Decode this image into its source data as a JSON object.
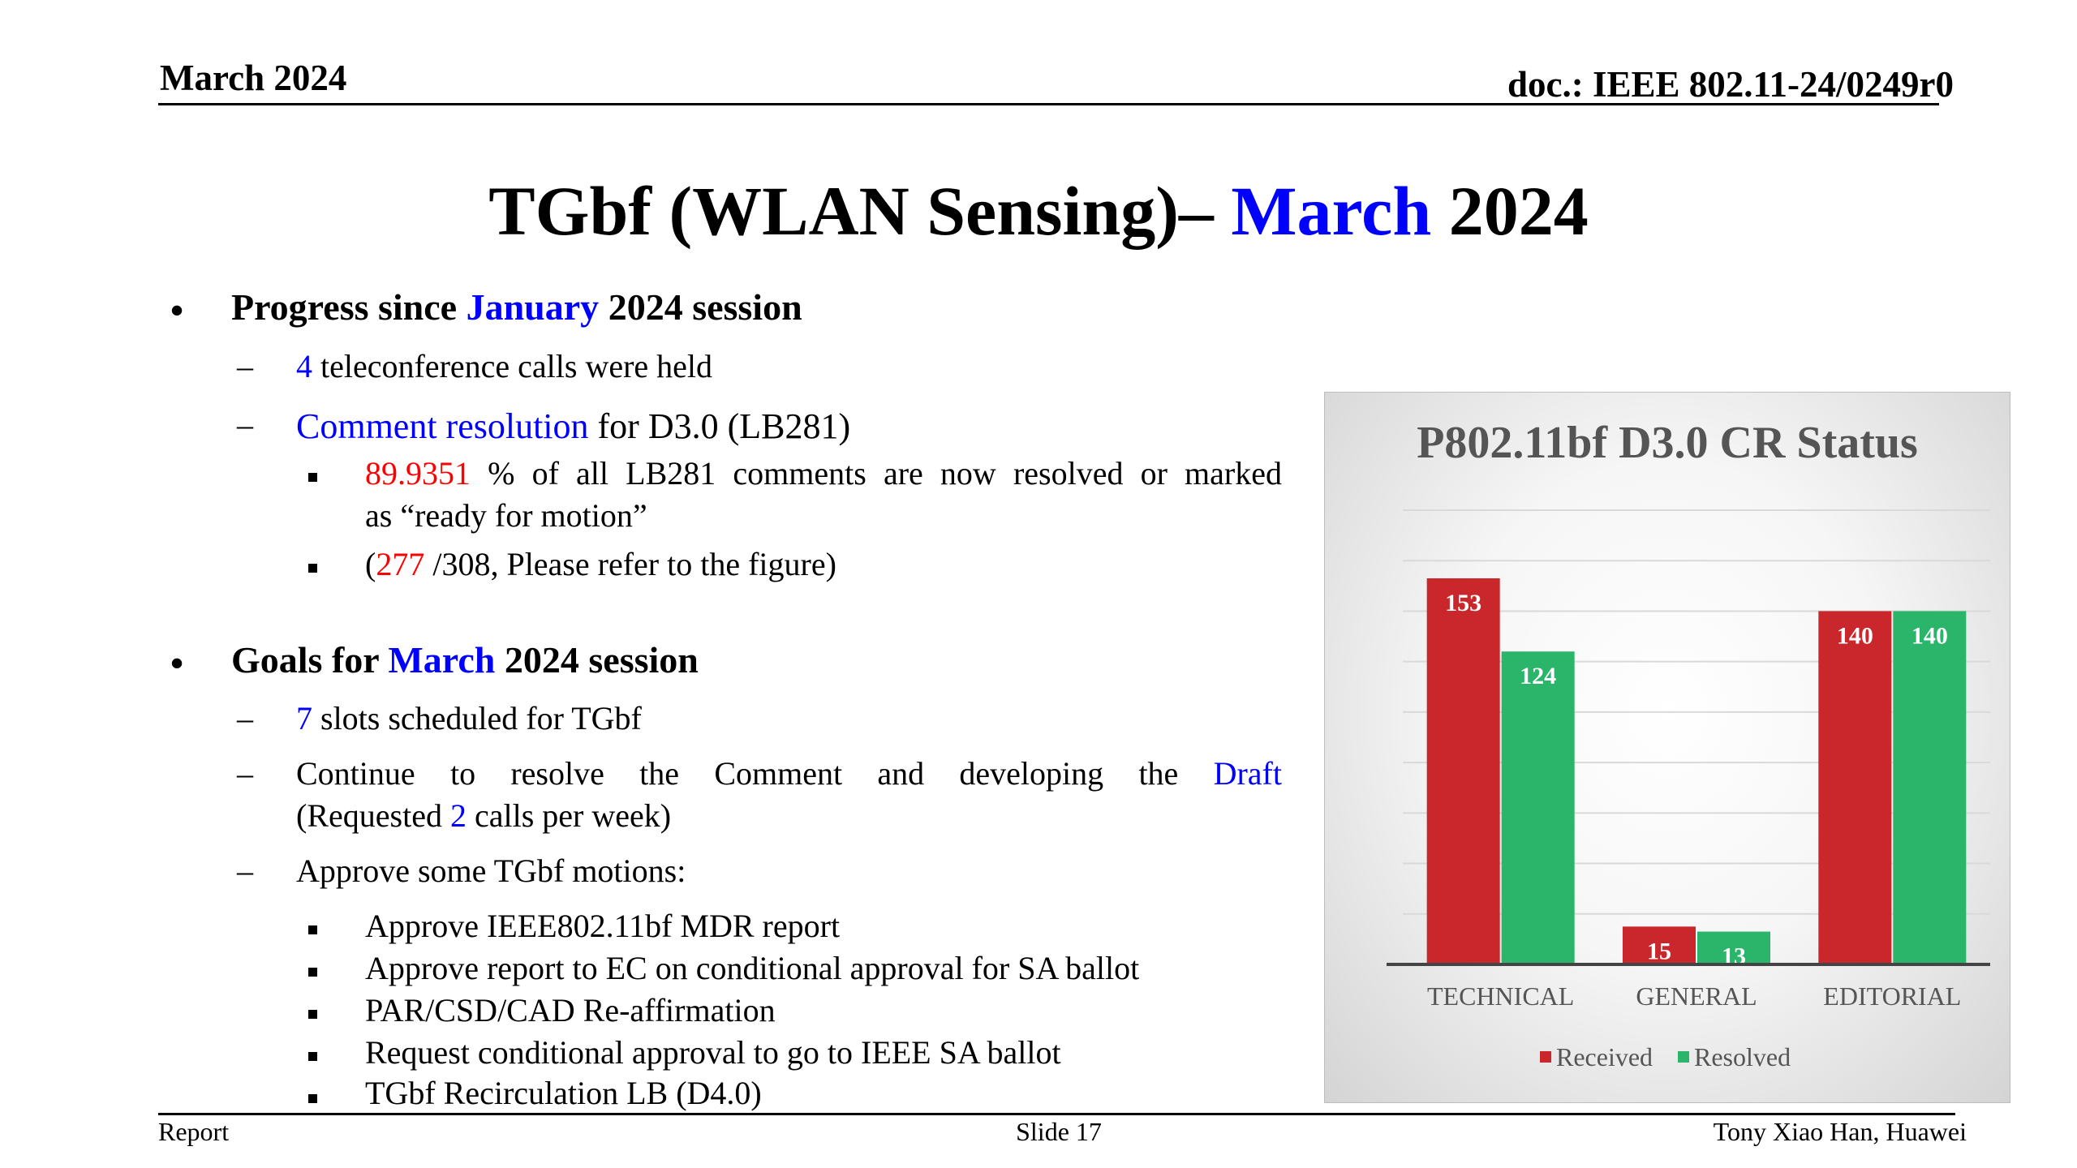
{
  "header": {
    "date": "March 2024",
    "doc": "doc.: IEEE 802.11-24/0249r0"
  },
  "title": {
    "part1": "TGbf (WLAN Sensing)– ",
    "month": "March",
    "part2": " 2024"
  },
  "progress": {
    "b1": "Progress since ",
    "b2": "January",
    "b3": " 2024 session",
    "calls_num": "4",
    "calls_text": " teleconference calls were held",
    "cr_link": "Comment resolution",
    "cr_text": " for D3.0 (LB281)",
    "pct": "89.9351",
    "pct_line1": " % of all LB281 comments are now resolved or marked",
    "pct_line2": "as “ready for motion”",
    "cnt_open": "(",
    "cnt": "277",
    "cnt_rest": " /308, Please refer to the figure)"
  },
  "goals": {
    "b1": "Goals for ",
    "b2": "March",
    "b3": " 2024 session",
    "slots_num": "7",
    "slots_text": " slots scheduled for TGbf",
    "continue_words": [
      "Continue",
      "to",
      "resolve",
      "the",
      "Comment",
      "and",
      "developing",
      "the"
    ],
    "draft": "Draft",
    "req_open": "(Requested ",
    "req_num": "2",
    "req_close": " calls per week)",
    "approve": "Approve some TGbf motions:",
    "motions": [
      "Approve IEEE802.11bf MDR report",
      "Approve report to EC on conditional approval for SA ballot",
      "PAR/CSD/CAD Re-affirmation",
      "Request conditional approval to go to IEEE SA ballot",
      "TGbf Recirculation LB (D4.0)"
    ]
  },
  "footer": {
    "left": "Report",
    "center": "Slide 17",
    "right": "Tony Xiao Han, Huawei"
  },
  "chart_data": {
    "type": "bar",
    "title": "P802.11bf D3.0 CR Status",
    "categories": [
      "TECHNICAL",
      "GENERAL",
      "EDITORIAL"
    ],
    "series": [
      {
        "name": "Received",
        "values": [
          153,
          15,
          140
        ],
        "color": "#c9272b"
      },
      {
        "name": "Resolved",
        "values": [
          124,
          13,
          140
        ],
        "color": "#2bb56a"
      }
    ],
    "ylim": [
      0,
      180
    ],
    "grid": true,
    "legend": "bottom"
  }
}
